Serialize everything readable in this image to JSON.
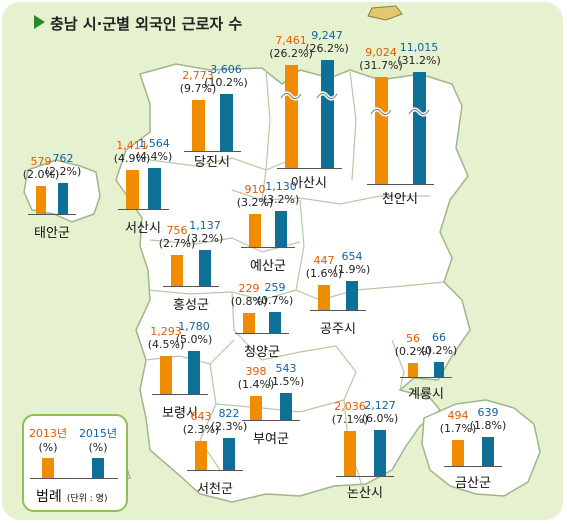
{
  "title": "충남 시·군별 외국인 근로자 수",
  "colors": {
    "y2013": "#f08c00",
    "y2015": "#0e6f97",
    "land": "#ffffff",
    "background": "#e6f2cf",
    "region_border": "#b7c9a2"
  },
  "icons": {
    "title_marker": "triangle-right-icon",
    "axis_break": "wavy-break-icon"
  },
  "regions": [
    {
      "id": "taean",
      "name": "태안군",
      "v2013": "579",
      "p2013": "(2.0%)",
      "v2015": "762",
      "p2015": "(2.2%)",
      "n2013": 579,
      "n2015": 762
    },
    {
      "id": "seosan",
      "name": "서산시",
      "v2013": "1,411",
      "p2013": "(4.9%)",
      "v2015": "1,564",
      "p2015": "(4.4%)",
      "n2013": 1411,
      "n2015": 1564
    },
    {
      "id": "dangjin",
      "name": "당진시",
      "v2013": "2,773",
      "p2013": "(9.7%)",
      "v2015": "3,606",
      "p2015": "(10.2%)",
      "n2013": 2773,
      "n2015": 3606
    },
    {
      "id": "asan",
      "name": "아산시",
      "v2013": "7,461",
      "p2013": "(26.2%)",
      "v2015": "9,247",
      "p2015": "(26.2%)",
      "n2013": 7461,
      "n2015": 9247,
      "axis_break": true
    },
    {
      "id": "cheonan",
      "name": "천안시",
      "v2013": "9,024",
      "p2013": "(31.7%)",
      "v2015": "11,015",
      "p2015": "(31.2%)",
      "n2013": 9024,
      "n2015": 11015,
      "axis_break": true
    },
    {
      "id": "yesan",
      "name": "예산군",
      "v2013": "910",
      "p2013": "(3.2%)",
      "v2015": "1,130",
      "p2015": "(3.2%)",
      "n2013": 910,
      "n2015": 1130
    },
    {
      "id": "hongseong",
      "name": "홍성군",
      "v2013": "756",
      "p2013": "(2.7%)",
      "v2015": "1,137",
      "p2015": "(3.2%)",
      "n2013": 756,
      "n2015": 1137
    },
    {
      "id": "gongju",
      "name": "공주시",
      "v2013": "447",
      "p2013": "(1.6%)",
      "v2015": "654",
      "p2015": "(1.9%)",
      "n2013": 447,
      "n2015": 654
    },
    {
      "id": "cheongyang",
      "name": "청양군",
      "v2013": "229",
      "p2013": "(0.8%)",
      "v2015": "259",
      "p2015": "(0.7%)",
      "n2013": 229,
      "n2015": 259
    },
    {
      "id": "boryeong",
      "name": "보령시",
      "v2013": "1,293",
      "p2013": "(4.5%)",
      "v2015": "1,780",
      "p2015": "(5.0%)",
      "n2013": 1293,
      "n2015": 1780
    },
    {
      "id": "gyeryong",
      "name": "계룡시",
      "v2013": "56",
      "p2013": "(0.2%)",
      "v2015": "66",
      "p2015": "(0.2%)",
      "n2013": 56,
      "n2015": 66
    },
    {
      "id": "buyeo",
      "name": "부여군",
      "v2013": "398",
      "p2013": "(1.4%)",
      "v2015": "543",
      "p2015": "(1.5%)",
      "n2013": 398,
      "n2015": 543
    },
    {
      "id": "seocheon",
      "name": "서천군",
      "v2013": "643",
      "p2013": "(2.3%)",
      "v2015": "822",
      "p2015": "(2.3%)",
      "n2013": 643,
      "n2015": 822
    },
    {
      "id": "nonsan",
      "name": "논산시",
      "v2013": "2,036",
      "p2013": "(7.1%)",
      "v2015": "2,127",
      "p2015": "(6.0%)",
      "n2013": 2036,
      "n2015": 2127
    },
    {
      "id": "geumsan",
      "name": "금산군",
      "v2013": "494",
      "p2013": "(1.7%)",
      "v2015": "639",
      "p2015": "(1.8%)",
      "n2013": 494,
      "n2015": 639
    }
  ],
  "legend": {
    "y2013": "2013년",
    "y2015": "2015년",
    "pct": "(%)",
    "title": "범례",
    "unit": "(단위 : 명)"
  }
}
